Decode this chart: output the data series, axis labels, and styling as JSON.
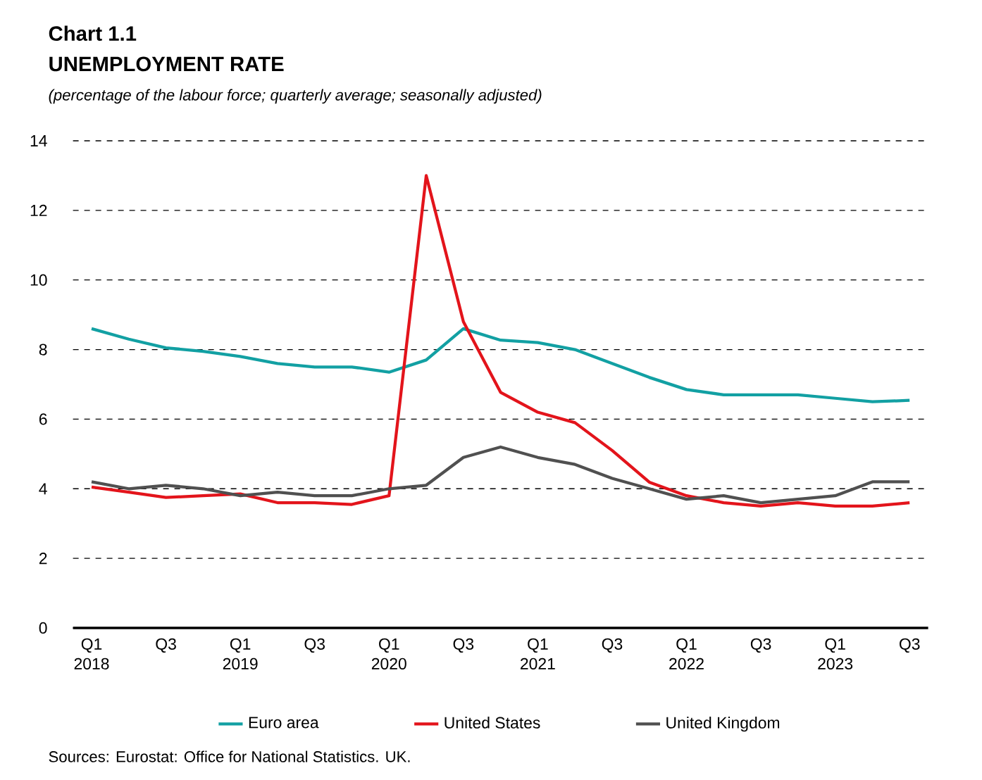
{
  "chart_data": {
    "type": "line",
    "title": "Chart 1.1",
    "subtitle": "UNEMPLOYMENT RATE",
    "annotations": [
      "(percentage of the labour force; quarterly average; seasonally adjusted)",
      "Sources: Eurostat: Office for National Statistics. UK."
    ],
    "categories": [
      "Q1 2018",
      null,
      "Q3",
      null,
      "Q1 2019",
      null,
      "Q3",
      null,
      "Q1 2020",
      null,
      "Q3",
      null,
      "Q1 2021",
      null,
      "Q3",
      null,
      "Q1 2022",
      null,
      "Q3",
      null,
      "Q1 2023",
      null,
      "Q3"
    ],
    "series": [
      {
        "name": "Euro area",
        "color": "#12a0a3",
        "values": [
          8.6,
          8.3,
          8.05,
          7.95,
          7.8,
          7.6,
          7.5,
          7.5,
          7.35,
          7.7,
          8.6,
          8.27,
          8.2,
          8.0,
          7.6,
          7.2,
          6.85,
          6.7,
          6.7,
          6.7,
          6.6,
          6.5,
          6.54
        ]
      },
      {
        "name": "United States",
        "color": "#e3141b",
        "values": [
          4.05,
          3.9,
          3.75,
          3.8,
          3.85,
          3.6,
          3.6,
          3.55,
          3.8,
          13.0,
          8.8,
          6.77,
          6.2,
          5.9,
          5.1,
          4.19,
          3.8,
          3.6,
          3.5,
          3.6,
          3.5,
          3.5,
          3.6
        ]
      },
      {
        "name": "United Kingdom",
        "color": "#505050",
        "values": [
          4.2,
          4.0,
          4.1,
          4.0,
          3.8,
          3.9,
          3.8,
          3.8,
          4.0,
          4.1,
          4.9,
          5.2,
          4.9,
          4.7,
          4.3,
          4.0,
          3.7,
          3.8,
          3.6,
          3.7,
          3.8,
          4.2,
          4.2
        ]
      }
    ],
    "ylim": [
      0,
      14
    ],
    "yticks": [
      0,
      2,
      4,
      6,
      8,
      10,
      12,
      14
    ],
    "grid": "y",
    "legend": "bottom",
    "marker": "none",
    "line_style": "solid"
  }
}
